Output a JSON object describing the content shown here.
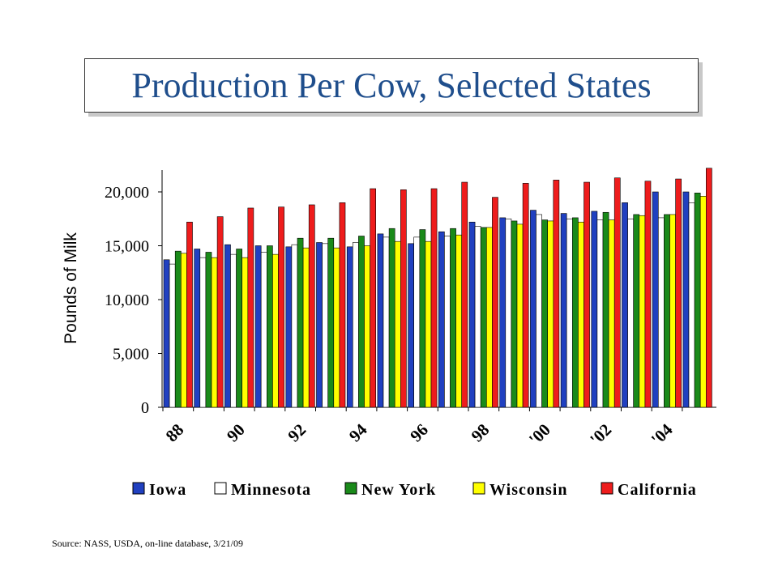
{
  "slide": {
    "title": "Production Per Cow, Selected States",
    "source": "Source:  NASS,  USDA,  on-line database, 3/21/09"
  },
  "colors": {
    "title": "#1f4e8c",
    "Iowa": "#2040c0",
    "Minnesota": "#ffffff",
    "New York": "#1a8a1a",
    "Wisconsin": "#ffff00",
    "California": "#ee1c1c"
  },
  "chart_data": {
    "type": "bar",
    "title": "",
    "xlabel": "",
    "ylabel": "Pounds of Milk",
    "ylim": [
      0,
      22000
    ],
    "yticks": [
      0,
      5000,
      10000,
      15000,
      20000
    ],
    "ytick_labels": [
      "0",
      "5,000",
      "10,000",
      "15,000",
      "20,000"
    ],
    "xtick_labels": [
      "88",
      "90",
      "92",
      "94",
      "96",
      "98",
      "'00",
      "'02",
      "'04"
    ],
    "grid": false,
    "legend_position": "bottom",
    "categories": [
      "1988",
      "1989",
      "1990",
      "1991",
      "1992",
      "1993",
      "1994",
      "1995",
      "1996",
      "1997",
      "1998",
      "1999",
      "2000",
      "2001",
      "2002",
      "2003",
      "2004",
      "2005"
    ],
    "series": [
      {
        "name": "Iowa",
        "values": [
          13700,
          14700,
          15100,
          15000,
          14900,
          15300,
          14900,
          16100,
          15200,
          16300,
          17200,
          17600,
          18300,
          18000,
          18200,
          19000,
          20000,
          20000
        ]
      },
      {
        "name": "Minnesota",
        "values": [
          13300,
          13900,
          14200,
          14400,
          15100,
          15200,
          15300,
          15800,
          15800,
          15900,
          16800,
          17500,
          17900,
          17500,
          17400,
          17500,
          17600,
          19000
        ]
      },
      {
        "name": "New York",
        "values": [
          14500,
          14400,
          14700,
          15000,
          15700,
          15700,
          15900,
          16600,
          16500,
          16600,
          16700,
          17300,
          17400,
          17600,
          18100,
          17900,
          17900,
          19900
        ]
      },
      {
        "name": "Wisconsin",
        "values": [
          14300,
          13900,
          13900,
          14200,
          14800,
          14800,
          15000,
          15400,
          15400,
          16000,
          16700,
          17000,
          17300,
          17200,
          17400,
          17800,
          17900,
          19600
        ]
      },
      {
        "name": "California",
        "values": [
          17200,
          17700,
          18500,
          18600,
          18800,
          19000,
          20300,
          20200,
          20300,
          20900,
          19500,
          20800,
          21100,
          20900,
          21300,
          21000,
          21200,
          22200
        ]
      }
    ]
  }
}
